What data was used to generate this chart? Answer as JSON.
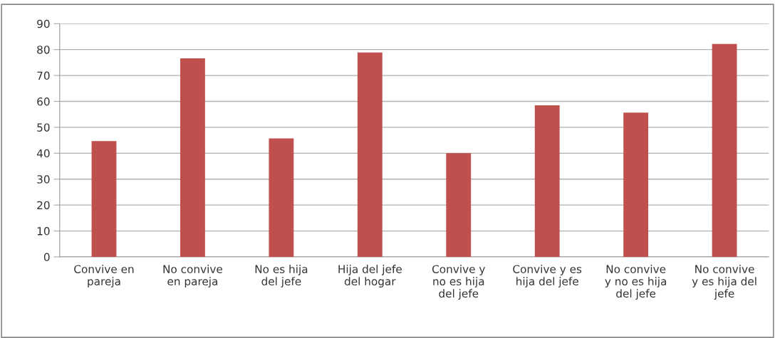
{
  "chart_data": {
    "type": "bar",
    "categories": [
      "Convive en\npareja",
      "No convive\nen pareja",
      "No es hija\ndel jefe",
      "Hija del jefe\ndel hogar",
      "Convive y\nno es hija\ndel jefe",
      "Convive y es\nhija del jefe",
      "No convive\ny no es hija\ndel jefe",
      "No convive\ny es hija del\njefe"
    ],
    "values": [
      44.7,
      76.6,
      45.7,
      78.9,
      40.0,
      58.5,
      55.7,
      82.2
    ],
    "color": "#c0504d",
    "ylim": [
      0,
      90
    ],
    "yticks": [
      0,
      10,
      20,
      30,
      40,
      50,
      60,
      70,
      80,
      90
    ],
    "grid": "y"
  }
}
